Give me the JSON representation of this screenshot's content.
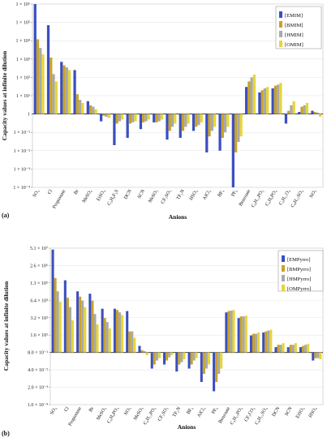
{
  "chart_data": [
    {
      "panel_label": "(a)",
      "type": "bar",
      "scale": "log",
      "xlabel": "Anions",
      "ylabel": "Capacity values at infinite dilution",
      "ylim": [
        0.0001,
        1000000
      ],
      "ytick_labels": [
        "1 × 10⁻⁴",
        "1 × 10⁻³",
        "1 × 10⁻²",
        "1 × 10⁻¹",
        "1",
        "1 × 10¹",
        "1 × 10²",
        "1 × 10³",
        "1 × 10⁴",
        "1 × 10⁵",
        "1 × 10⁶"
      ],
      "legend_position": "top-right",
      "categories": [
        "SO₄",
        "Cl",
        "Propionate",
        "Br",
        "MeSO₄",
        "EtSO₄",
        "C₄H₈F₃S",
        "DCN",
        "SCN",
        "MeSO₃",
        "CF₃SO₃",
        "TF₂N",
        "HSO₄",
        "AlCl₄",
        "BF₄",
        "PF₆",
        "Benzoate",
        "C₆H₁₂PO₂",
        "C₄H₆PO₄",
        "C₄H₁₁O₄",
        "C₈H₁₅SO₄",
        "NO₃"
      ],
      "series": [
        {
          "name": "[EMIM]",
          "color": "#3b4fbf",
          "values": [
            1000000,
            70000,
            700,
            250,
            5,
            0.4,
            0.02,
            0.05,
            0.15,
            0.35,
            0.04,
            0.05,
            0.12,
            0.008,
            0.01,
            0.0001,
            30,
            15,
            25,
            0.3,
            1.3,
            1.5
          ]
        },
        {
          "name": "[BMIM]",
          "color": "#c9a227",
          "values": [
            12000,
            1200,
            450,
            12,
            3,
            0.8,
            0.3,
            0.3,
            0.35,
            0.35,
            0.12,
            0.12,
            0.2,
            0.06,
            0.05,
            0.008,
            60,
            20,
            35,
            1.5,
            2.5,
            1.3
          ]
        },
        {
          "name": "[HMIM]",
          "color": "#a9a9a9",
          "values": [
            4000,
            150,
            350,
            6,
            2.5,
            0.7,
            0.4,
            0.35,
            0.4,
            0.4,
            0.2,
            0.2,
            0.25,
            0.12,
            0.1,
            0.03,
            100,
            25,
            40,
            3,
            3,
            1.2
          ]
        },
        {
          "name": "[OMIM]",
          "color": "#e6d639",
          "values": [
            1800,
            60,
            250,
            4,
            1.8,
            0.6,
            0.5,
            0.4,
            0.5,
            0.5,
            0.3,
            0.3,
            0.35,
            0.2,
            0.2,
            0.06,
            140,
            30,
            50,
            5,
            4,
            0.7
          ]
        }
      ]
    },
    {
      "panel_label": "(b)",
      "type": "bar",
      "scale": "log",
      "xlabel": "Anions",
      "ylabel": "Capacity values at infinite dilution",
      "ylim": [
        0.0001,
        51000000
      ],
      "yticks": [
        0.0001,
        0.002,
        0.04,
        0.8,
        16,
        320,
        6400,
        130000,
        2600000,
        51000000
      ],
      "ytick_labels": [
        "1.0 × 10⁻⁴",
        "2.0 × 10⁻³",
        "4.0 × 10⁻²",
        "8.0 × 10⁻¹",
        "1.6 × 10¹",
        "3.2 × 10²",
        "6.4 × 10³",
        "1.3 × 10⁵",
        "2.6 × 10⁶",
        "5.1 × 10⁷"
      ],
      "legend_position": "top-right",
      "categories": [
        "SO₄",
        "Cl",
        "Propionate",
        "Br",
        "MeSO₄",
        "C₄H₉PO₄",
        "NO₃",
        "MeSO₃",
        "C₆H₁₃PO₂",
        "CF₃SO₃",
        "TF₂N",
        "BF₄",
        "AlCl₄",
        "PF₆",
        "Benzoate",
        "C₄H₁₀PO₄",
        "CF₃CO₂",
        "C₈H₁₅SO₄",
        "DCN",
        "SCN",
        "EtSO₄",
        "HSO₄"
      ],
      "series": [
        {
          "name": "[EMPyrro]",
          "color": "#3b4fbf",
          "values": [
            40000000,
            200000,
            30000,
            20000,
            1500,
            1500,
            1000,
            2.5,
            0.05,
            0.1,
            0.03,
            0.05,
            0.005,
            0.001,
            800,
            300,
            15,
            25,
            2,
            2,
            2,
            0.2
          ]
        },
        {
          "name": "[BMPyrro]",
          "color": "#c9a227",
          "values": [
            300000,
            10000,
            12000,
            6000,
            300,
            1200,
            30,
            1.2,
            0.1,
            0.2,
            0.1,
            0.1,
            0.02,
            0.005,
            1000,
            400,
            20,
            30,
            3,
            3,
            2.5,
            0.3
          ]
        },
        {
          "name": "[HMPyrro]",
          "color": "#a9a9a9",
          "values": [
            30000,
            2000,
            6000,
            600,
            150,
            800,
            30,
            1,
            0.2,
            0.35,
            0.15,
            0.2,
            0.05,
            0.02,
            1100,
            400,
            20,
            35,
            3,
            3,
            3,
            0.3
          ]
        },
        {
          "name": "[OMPyrro]",
          "color": "#e6d639",
          "values": [
            5000,
            200,
            2000,
            100,
            50,
            500,
            10,
            0.5,
            0.3,
            0.5,
            0.25,
            0.3,
            0.1,
            0.05,
            1200,
            450,
            25,
            40,
            4,
            4,
            3.5,
            0.25
          ]
        }
      ]
    }
  ]
}
